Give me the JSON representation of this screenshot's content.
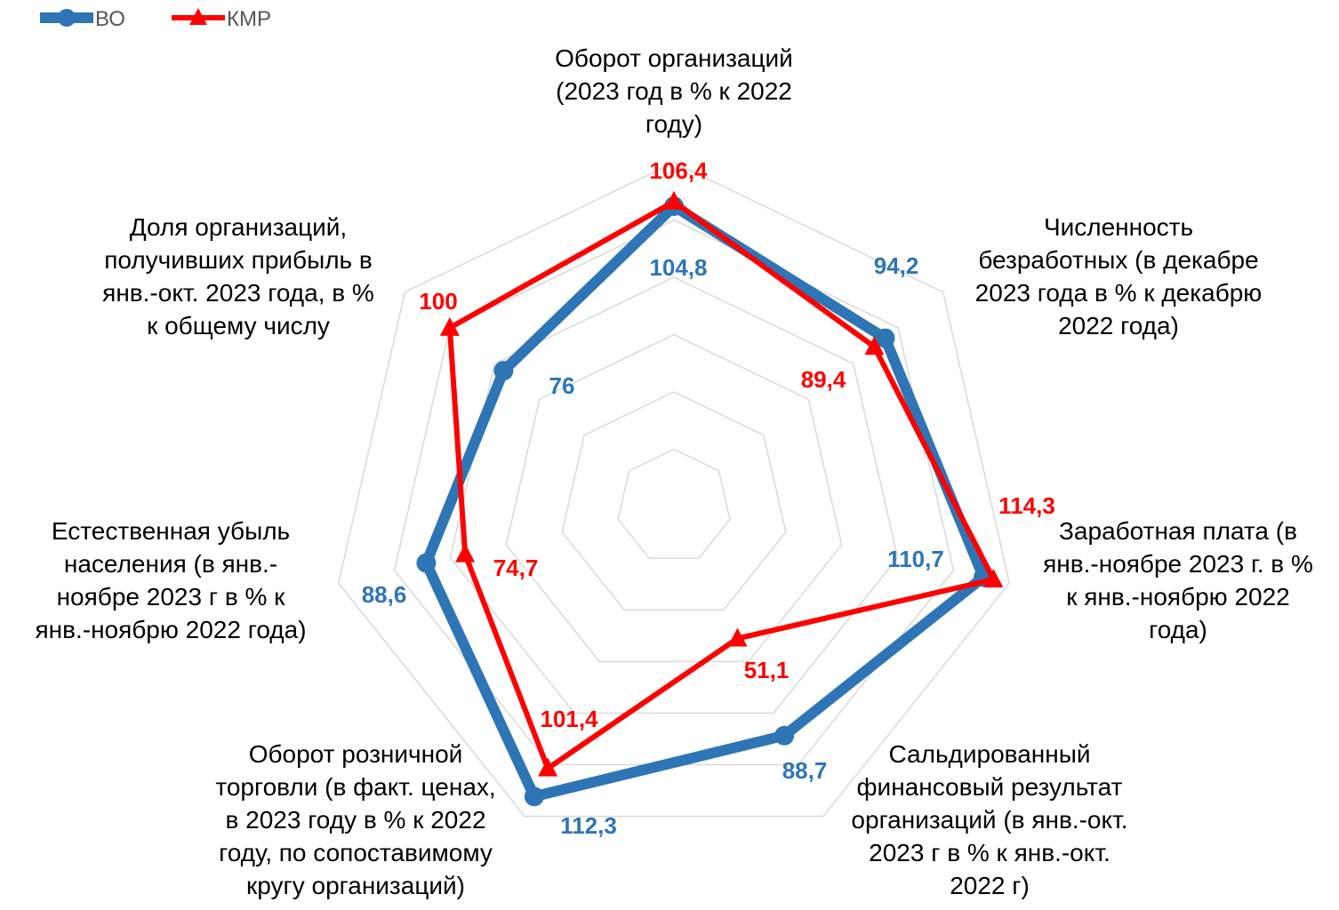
{
  "chart_data": {
    "type": "radar",
    "categories": [
      "Оборот организаций\n(2023 год в % к 2022\nгоду)",
      "Численность\nбезработных (в декабре\n2023 года в % к декабрю\n2022 года)",
      "Заработная плата (в\nянв.-ноябре 2023 г. в %\nк янв.-ноябрю 2022\nгода)",
      "Сальдированный\nфинансовый результат\nорганизаций (в янв.-окт.\n2023 г в % к янв.-окт.\n2022 г)",
      "Оборот розничной\nторговли (в факт. ценах,\nв 2023 году в % к 2022\nгоду, по сопоставимому\nкругу организаций)",
      "Естественная убыль\nнаселения (в янв.-\nноябре 2023 г в % к\nянв.-ноябрю 2022 года)",
      "Доля организаций,\nполучивших прибыль в\nянв.-окт. 2023 года, в %\nк общему числу"
    ],
    "series": [
      {
        "name": "ВО",
        "color": "#2e75b6",
        "marker": "circle",
        "values": [
          104.8,
          94.2,
          110.7,
          88.7,
          112.3,
          88.6,
          76
        ],
        "value_labels": [
          "104,8",
          "94,2",
          "110,7",
          "88,7",
          "112,3",
          "88,6",
          "76"
        ]
      },
      {
        "name": "КМР",
        "color": "#ff0000",
        "marker": "triangle",
        "values": [
          106.4,
          89.4,
          114.3,
          51.1,
          101.4,
          74.7,
          100
        ],
        "value_labels": [
          "106,4",
          "89,4",
          "114,3",
          "51,1",
          "101,4",
          "74,7",
          "100"
        ]
      }
    ],
    "rlim": [
      0,
      120
    ],
    "rticks": [
      0,
      20,
      40,
      60,
      80,
      100,
      120
    ],
    "grid": true,
    "legend": "top-left"
  }
}
